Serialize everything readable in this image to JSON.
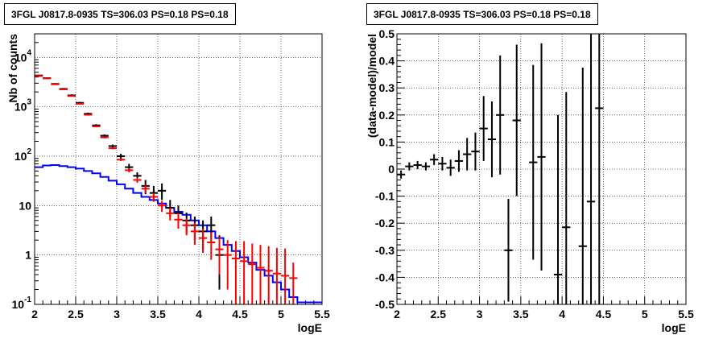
{
  "chart_data": [
    {
      "type": "line",
      "title": "3FGL J0817.8-0935 TS=306.03 PS=0.18 PS=0.18",
      "xlabel": "logE",
      "ylabel": "Nb of counts",
      "xlim": [
        2,
        5.5
      ],
      "ylim": [
        0.1,
        30000
      ],
      "y_scale": "log",
      "grid": true,
      "x_ticks": [
        "2",
        "2.5",
        "3",
        "3.5",
        "4",
        "4.5",
        "5",
        "5.5"
      ],
      "y_ticks": [
        {
          "value": 0.1,
          "base": "10",
          "exp": "-1"
        },
        {
          "value": 1,
          "base": "1",
          "exp": ""
        },
        {
          "value": 10,
          "base": "10",
          "exp": ""
        },
        {
          "value": 100,
          "base": "10",
          "exp": "2"
        },
        {
          "value": 1000,
          "base": "10",
          "exp": "3"
        },
        {
          "value": 10000,
          "base": "10",
          "exp": "4"
        }
      ],
      "series": [
        {
          "color": "#000000",
          "kind": "data",
          "x": [
            2.05,
            2.15,
            2.25,
            2.35,
            2.45,
            2.55,
            2.65,
            2.75,
            2.85,
            2.95,
            3.05,
            3.15,
            3.25,
            3.35,
            3.45,
            3.55,
            3.65,
            3.75,
            3.85,
            3.95,
            4.05,
            4.15,
            4.25
          ],
          "y": [
            4300,
            3800,
            2900,
            2300,
            1700,
            1200,
            720,
            420,
            260,
            160,
            100,
            60,
            40,
            25,
            18,
            20,
            9,
            7,
            5,
            4,
            3,
            4,
            1
          ],
          "ylo": [
            4150,
            3650,
            2800,
            2200,
            1620,
            1140,
            680,
            395,
            245,
            148,
            88,
            50,
            33,
            17,
            12,
            13,
            6,
            4.5,
            2.8,
            2,
            1.3,
            2,
            0.2
          ],
          "yhi": [
            4450,
            3950,
            3000,
            2400,
            1780,
            1260,
            760,
            445,
            275,
            172,
            112,
            70,
            47,
            33,
            25,
            28,
            13,
            10,
            7.2,
            6,
            5,
            6,
            2.5
          ]
        },
        {
          "color": "#ff0000",
          "kind": "model",
          "x": [
            2.05,
            2.15,
            2.25,
            2.35,
            2.45,
            2.55,
            2.65,
            2.75,
            2.85,
            2.95,
            3.05,
            3.15,
            3.25,
            3.35,
            3.45,
            3.55,
            3.65,
            3.75,
            3.85,
            3.95,
            4.05,
            4.15,
            4.25,
            4.35,
            4.45,
            4.55,
            4.65,
            4.75,
            4.85,
            4.95,
            5.05,
            5.15
          ],
          "y": [
            4200,
            3750,
            2850,
            2250,
            1650,
            1150,
            690,
            400,
            240,
            145,
            85,
            52,
            33,
            22,
            15,
            10,
            7,
            5.2,
            4,
            3,
            2.2,
            1.8,
            1.3,
            1,
            0.85,
            0.75,
            0.65,
            0.55,
            0.48,
            0.42,
            0.38,
            0.34
          ],
          "ylo": [
            4130,
            3680,
            2790,
            2200,
            1610,
            1120,
            670,
            385,
            230,
            138,
            80,
            47,
            29,
            18,
            12,
            7.5,
            5,
            3.4,
            2.5,
            1.6,
            1.1,
            0.8,
            0.4,
            0.2,
            0.1,
            0.1,
            0.1,
            0.1,
            0.1,
            0.1,
            0.1,
            0.1
          ],
          "yhi": [
            4270,
            3820,
            2910,
            2300,
            1690,
            1180,
            710,
            415,
            250,
            152,
            90,
            57,
            37,
            26,
            18,
            12.5,
            9,
            7,
            5.5,
            4.5,
            3.4,
            2.9,
            2.3,
            2,
            1.9,
            1.9,
            1.7,
            1.6,
            1.5,
            1.4,
            1.35,
            0.7
          ]
        },
        {
          "color": "#0000ff",
          "kind": "model-step",
          "edges": [
            2.0,
            2.1,
            2.2,
            2.3,
            2.4,
            2.5,
            2.6,
            2.7,
            2.8,
            2.9,
            3.0,
            3.1,
            3.2,
            3.3,
            3.4,
            3.5,
            3.6,
            3.7,
            3.8,
            3.9,
            4.0,
            4.1,
            4.2,
            4.3,
            4.4,
            4.5,
            4.6,
            4.7,
            4.8,
            4.9,
            5.0,
            5.1,
            5.2,
            5.5
          ],
          "y": [
            60,
            65,
            66,
            63,
            60,
            56,
            50,
            45,
            38,
            32,
            27,
            22,
            18,
            15,
            13,
            11,
            9,
            7.5,
            6.5,
            5,
            4,
            3,
            2.2,
            1.6,
            1.2,
            0.9,
            0.7,
            0.5,
            0.38,
            0.28,
            0.2,
            0.14,
            0.11
          ]
        }
      ]
    },
    {
      "type": "scatter",
      "title": "3FGL J0817.8-0935 TS=306.03 PS=0.18 PS=0.18",
      "xlabel": "logE",
      "ylabel": "(data-model)/model",
      "xlim": [
        2,
        5.5
      ],
      "ylim": [
        -0.5,
        0.5
      ],
      "grid": true,
      "x_ticks": [
        "2",
        "2.5",
        "3",
        "3.5",
        "4",
        "4.5",
        "5",
        "5.5"
      ],
      "y_ticks": [
        "-0.5",
        "-0.4",
        "-0.3",
        "-0.2",
        "-0.1",
        "0",
        "0.1",
        "0.2",
        "0.3",
        "0.4",
        "0.5"
      ],
      "series": [
        {
          "color": "#000000",
          "x": [
            2.05,
            2.15,
            2.25,
            2.35,
            2.45,
            2.55,
            2.65,
            2.75,
            2.85,
            2.95,
            3.05,
            3.15,
            3.25,
            3.35,
            3.45,
            3.65,
            3.75,
            3.95,
            4.05,
            4.25,
            4.35,
            4.45
          ],
          "y": [
            -0.02,
            0.01,
            0.015,
            0.01,
            0.035,
            0.02,
            0.005,
            0.03,
            0.055,
            0.065,
            0.15,
            0.11,
            0.2,
            -0.3,
            0.18,
            0.025,
            0.045,
            -0.39,
            -0.215,
            -0.285,
            -0.12,
            0.225
          ],
          "err": [
            0.015,
            0.015,
            0.015,
            0.015,
            0.02,
            0.025,
            0.03,
            0.04,
            0.06,
            0.07,
            0.12,
            0.14,
            0.22,
            0.19,
            0.28,
            0.36,
            0.42,
            0.59,
            0.5,
            0.66,
            0.74,
            0.95
          ]
        }
      ]
    }
  ]
}
